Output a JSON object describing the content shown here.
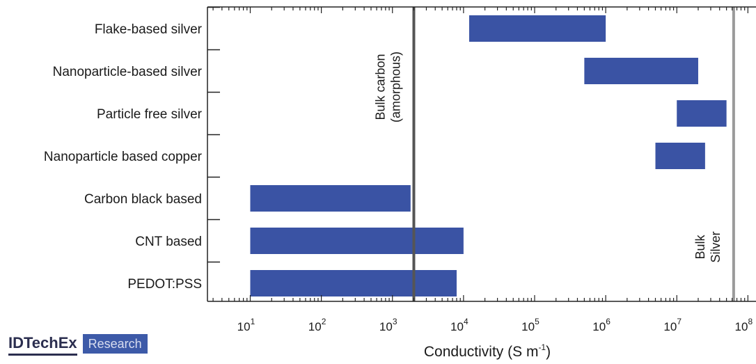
{
  "brand": {
    "name": "IDTechEx",
    "badge": "Research"
  },
  "colors": {
    "bar": "#3a53a4",
    "carbon_line": "#555555",
    "silver_line": "#9a9a9a",
    "axis": "#222222"
  },
  "chart_data": {
    "type": "bar",
    "orientation": "horizontal",
    "x_scale": "log",
    "xlim": [
      2.5,
      130000000
    ],
    "xlabel": "Conductivity (S m-1)",
    "xlabel_base": "Conductivity (S m",
    "xlabel_exp": "-1",
    "xlabel_end": ")",
    "xticks": [
      10,
      100,
      1000,
      10000,
      100000,
      1000000,
      10000000,
      100000000
    ],
    "xtick_labels": [
      {
        "base": "10",
        "exp": "1"
      },
      {
        "base": "10",
        "exp": "2"
      },
      {
        "base": "10",
        "exp": "3"
      },
      {
        "base": "10",
        "exp": "4"
      },
      {
        "base": "10",
        "exp": "5"
      },
      {
        "base": "10",
        "exp": "6"
      },
      {
        "base": "10",
        "exp": "7"
      },
      {
        "base": "10",
        "exp": "8"
      }
    ],
    "categories": [
      "Flake-based silver",
      "Nanoparticle-based silver",
      "Particle free silver",
      "Nanoparticle based copper",
      "Carbon black based",
      "CNT based",
      "PEDOT:PSS"
    ],
    "ranges": [
      [
        12000,
        1000000
      ],
      [
        500000,
        20000000
      ],
      [
        10000000,
        50000000
      ],
      [
        5000000,
        25000000
      ],
      [
        10,
        1800
      ],
      [
        10,
        10000
      ],
      [
        10,
        8000
      ]
    ],
    "reference_lines": [
      {
        "value": 2000,
        "label_lines": [
          "Bulk carbon",
          "(amorphous)"
        ],
        "color_key": "carbon_line"
      },
      {
        "value": 63000000,
        "label_lines": [
          "Bulk",
          "Silver"
        ],
        "color_key": "silver_line"
      }
    ]
  }
}
